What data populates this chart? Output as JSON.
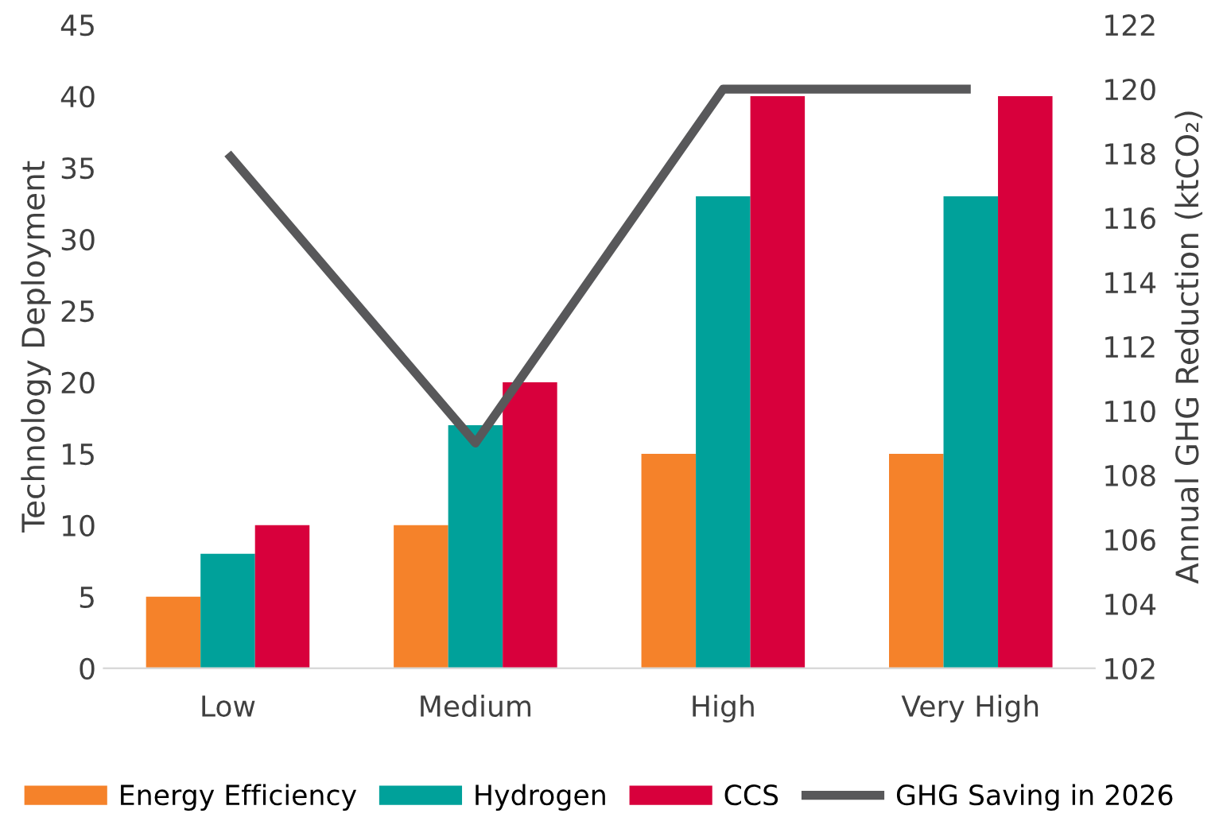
{
  "chart_data": {
    "type": "bar",
    "categories": [
      "Low",
      "Medium",
      "High",
      "Very High"
    ],
    "ylabel": "Technology Deployment",
    "y2label": "Annual GHG Reduction (ktCO₂)",
    "ylim": [
      0,
      45
    ],
    "yticks": [
      0,
      5,
      10,
      15,
      20,
      25,
      30,
      35,
      40,
      45
    ],
    "y2lim": [
      102,
      122
    ],
    "y2ticks": [
      102,
      104,
      106,
      108,
      110,
      112,
      114,
      116,
      118,
      120,
      122
    ],
    "series": [
      {
        "name": "Energy Efficiency",
        "color": "#f5822a",
        "values": [
          5,
          10,
          15,
          15
        ]
      },
      {
        "name": "Hydrogen",
        "color": "#00a19a",
        "values": [
          8,
          17,
          33,
          33
        ]
      },
      {
        "name": "CCS",
        "color": "#d8003c",
        "values": [
          10,
          20,
          40,
          40
        ]
      },
      {
        "name": "GHG Saving in 2026",
        "type": "line",
        "axis": "y2",
        "color": "#58585a",
        "values": [
          118,
          109,
          120,
          120
        ]
      }
    ],
    "grid": false,
    "legend": "bottom"
  }
}
